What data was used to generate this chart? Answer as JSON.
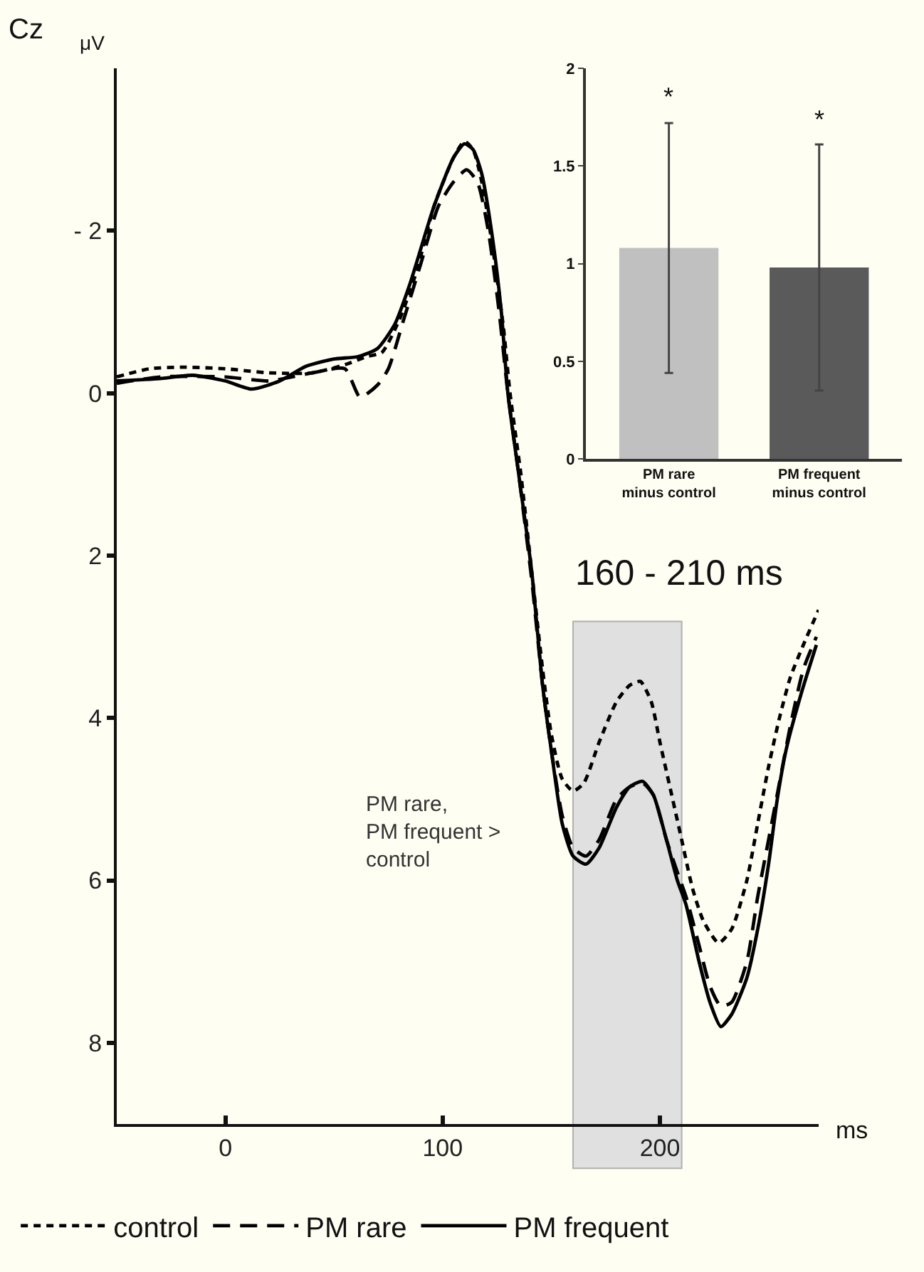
{
  "chart_data": [
    {
      "type": "line",
      "title": "Cz",
      "xlabel": "ms",
      "ylabel": "μV",
      "x": [
        -50,
        -30,
        -15,
        0,
        12,
        25,
        37,
        50,
        61,
        70,
        78,
        85,
        96,
        105,
        110,
        114,
        118,
        123,
        127,
        130,
        135,
        141,
        146,
        150,
        155,
        160,
        166,
        172,
        180,
        186,
        192,
        197,
        203,
        208,
        212,
        218,
        223,
        228,
        233,
        240,
        245,
        250,
        254,
        258,
        265,
        272
      ],
      "series": [
        {
          "name": "control",
          "color": "#000000",
          "line_style": "dotted",
          "x": [
            -50,
            -35,
            -20,
            0,
            20,
            40,
            55,
            65,
            72,
            80,
            88,
            96,
            105,
            110,
            114,
            118,
            123,
            128,
            131,
            136,
            141,
            146,
            150,
            155,
            160,
            165,
            172,
            180,
            186,
            191,
            196,
            200,
            205,
            210,
            215,
            220,
            227,
            233,
            240,
            245,
            250,
            255,
            260,
            266,
            273
          ],
          "values": [
            -0.2,
            -0.3,
            -0.32,
            -0.3,
            -0.25,
            -0.25,
            -0.35,
            -0.45,
            -0.5,
            -0.9,
            -1.5,
            -2.3,
            -2.9,
            -3.1,
            -3.0,
            -2.6,
            -1.8,
            -0.8,
            0,
            1.0,
            2.2,
            3.4,
            4.2,
            4.75,
            4.9,
            4.8,
            4.3,
            3.8,
            3.6,
            3.55,
            3.8,
            4.3,
            4.9,
            5.5,
            6.1,
            6.5,
            6.77,
            6.6,
            6.0,
            5.3,
            4.6,
            4.0,
            3.5,
            3.1,
            2.67
          ]
        },
        {
          "name": "PM rare",
          "color": "#000000",
          "line_style": "dashed",
          "x": [
            -50,
            -30,
            0,
            20,
            40,
            55,
            62,
            70,
            75,
            82,
            90,
            98,
            105,
            111,
            116,
            121,
            126,
            130,
            135,
            141,
            146,
            150,
            155,
            160,
            166,
            172,
            180,
            186,
            192,
            197,
            203,
            208,
            212,
            218,
            223,
            228,
            233,
            240,
            245,
            250,
            255,
            260,
            266,
            272
          ],
          "values": [
            -0.12,
            -0.2,
            -0.2,
            -0.15,
            -0.25,
            -0.3,
            0.05,
            -0.1,
            -0.3,
            -0.9,
            -1.6,
            -2.3,
            -2.6,
            -2.75,
            -2.6,
            -2.0,
            -1.0,
            0,
            1.0,
            2.3,
            3.6,
            4.4,
            5.2,
            5.6,
            5.7,
            5.5,
            5.0,
            4.85,
            4.8,
            4.95,
            5.5,
            5.9,
            6.2,
            6.8,
            7.3,
            7.55,
            7.5,
            7.0,
            6.2,
            5.5,
            4.8,
            4.1,
            3.4,
            3.0
          ]
        },
        {
          "name": "PM frequent",
          "color": "#000000",
          "line_style": "solid",
          "values": [
            -0.15,
            -0.18,
            -0.22,
            -0.15,
            -0.05,
            -0.15,
            -0.33,
            -0.42,
            -0.45,
            -0.55,
            -0.85,
            -1.35,
            -2.3,
            -2.9,
            -3.07,
            -3.0,
            -2.7,
            -1.9,
            -1.0,
            0,
            1.0,
            2.2,
            3.6,
            4.4,
            5.3,
            5.7,
            5.8,
            5.6,
            5.1,
            4.85,
            4.78,
            4.95,
            5.5,
            6.0,
            6.3,
            7.0,
            7.5,
            7.8,
            7.65,
            7.2,
            6.6,
            5.8,
            5.0,
            4.4,
            3.7,
            3.1
          ]
        }
      ],
      "xlim": [
        -50,
        273
      ],
      "xticks": [
        0,
        100,
        200
      ],
      "ylim": [
        9,
        -4
      ],
      "yticks": [
        {
          "value": -2,
          "label": "- 2"
        },
        0,
        2,
        4,
        6,
        8
      ],
      "bands": [
        {
          "axis": "x",
          "from": 160,
          "to": 210,
          "label": "160 - 210 ms",
          "color": "#e0e0e0"
        }
      ],
      "annotations": [
        "PM rare,\nPM frequent >\ncontrol"
      ],
      "legend": "bottom",
      "grid": false
    },
    {
      "type": "bar",
      "categories": [
        "PM rare\nminus control",
        "PM frequent\nminus control"
      ],
      "values": [
        1.08,
        0.98
      ],
      "colors": [
        "#c0c0c0",
        "#5a5a5a"
      ],
      "errors": [
        [
          0.44,
          1.72
        ],
        [
          0.35,
          1.61
        ]
      ],
      "ylim": [
        0,
        2
      ],
      "yticks": [
        0,
        0.5,
        1,
        1.5,
        2
      ],
      "annotations": [
        "*",
        "*"
      ],
      "grid": false
    }
  ]
}
